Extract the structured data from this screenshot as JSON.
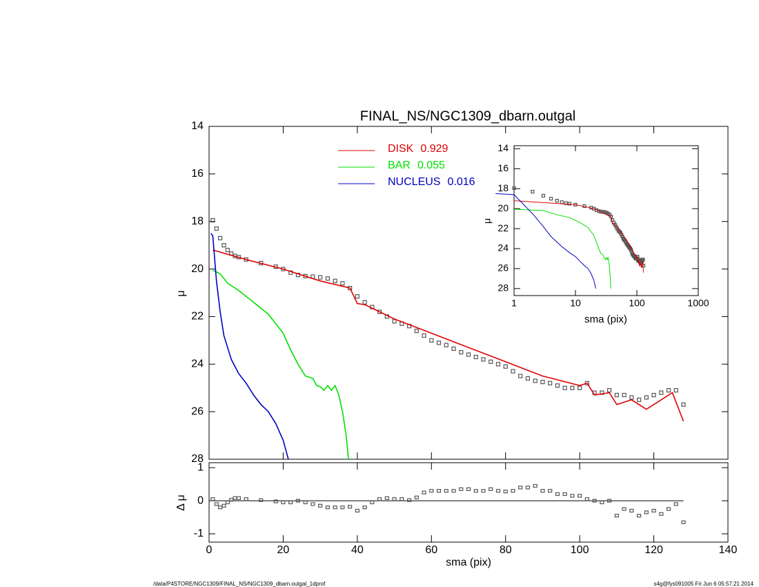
{
  "chart_data": [
    {
      "type": "line",
      "title": "FINAL_NS/NGC1309_dbarn.outgal",
      "ylabel": "μ",
      "xlim": [
        0,
        140
      ],
      "ylim": [
        14,
        28
      ],
      "yticks": [
        14,
        16,
        18,
        20,
        22,
        24,
        26,
        28
      ],
      "series": [
        {
          "marker": "square",
          "color": "#555555",
          "x": [
            1,
            2,
            3,
            4,
            5,
            6,
            7,
            8,
            10,
            14,
            18,
            20,
            22,
            24,
            26,
            28,
            30,
            32,
            34,
            36,
            38,
            40,
            42,
            44,
            46,
            48,
            50,
            52,
            54,
            56,
            58,
            60,
            62,
            64,
            66,
            68,
            70,
            72,
            74,
            76,
            78,
            80,
            82,
            84,
            86,
            88,
            90,
            92,
            94,
            96,
            98,
            100,
            102,
            104,
            106,
            108,
            110,
            112,
            114,
            116,
            118,
            120,
            122,
            124,
            126,
            128
          ],
          "values": [
            17.95,
            18.3,
            18.7,
            19.0,
            19.2,
            19.35,
            19.45,
            19.5,
            19.6,
            19.75,
            19.9,
            20.0,
            20.15,
            20.25,
            20.3,
            20.32,
            20.35,
            20.4,
            20.5,
            20.6,
            20.8,
            21.15,
            21.4,
            21.6,
            21.8,
            22.0,
            22.2,
            22.3,
            22.4,
            22.6,
            22.8,
            23.0,
            23.1,
            23.2,
            23.35,
            23.5,
            23.6,
            23.7,
            23.8,
            23.9,
            24.0,
            24.1,
            24.3,
            24.5,
            24.6,
            24.7,
            24.75,
            24.8,
            24.9,
            25.0,
            25.0,
            25.0,
            24.8,
            25.2,
            25.2,
            25.1,
            25.3,
            25.3,
            25.4,
            25.5,
            25.4,
            25.3,
            25.2,
            25.1,
            25.1,
            25.7
          ]
        },
        {
          "name": "DISK",
          "fraction": 0.929,
          "color": "#e00000",
          "x": [
            1,
            10,
            20,
            30,
            38,
            40,
            42,
            50,
            60,
            70,
            75,
            80,
            85,
            90,
            95,
            100,
            102,
            104,
            108,
            110,
            112,
            114,
            118,
            121,
            125,
            128
          ],
          "values": [
            19.2,
            19.6,
            20.0,
            20.5,
            20.8,
            21.45,
            21.5,
            22.1,
            22.7,
            23.3,
            23.6,
            23.9,
            24.2,
            24.5,
            24.7,
            24.9,
            24.8,
            25.3,
            25.2,
            25.7,
            25.6,
            25.5,
            25.9,
            25.6,
            25.2,
            26.4
          ]
        },
        {
          "name": "BAR",
          "fraction": 0.055,
          "color": "#00e000",
          "x": [
            1,
            3,
            5,
            8,
            12,
            16,
            20,
            22,
            24,
            26,
            28,
            29,
            30,
            31,
            32,
            33,
            34,
            35,
            36,
            37,
            37.6
          ],
          "values": [
            20.05,
            20.2,
            20.6,
            20.9,
            21.4,
            21.9,
            22.7,
            23.4,
            24.0,
            24.5,
            24.6,
            24.9,
            24.95,
            25.1,
            24.9,
            25.1,
            24.9,
            25.3,
            26.0,
            27.0,
            28.0
          ]
        },
        {
          "name": "NUCLEUS",
          "fraction": 0.016,
          "color": "#0000c0",
          "x": [
            0.5,
            1,
            2,
            3,
            4,
            6,
            8,
            10,
            12,
            14,
            16,
            18,
            20,
            21.4
          ],
          "values": [
            18.5,
            18.6,
            20.5,
            21.8,
            22.8,
            23.8,
            24.4,
            24.8,
            25.3,
            25.7,
            26.0,
            26.5,
            27.2,
            28.0
          ]
        }
      ]
    },
    {
      "type": "scatter",
      "ylabel": "Δ μ",
      "xlabel": "sma (pix)",
      "xlim": [
        0,
        140
      ],
      "xticks": [
        0,
        20,
        40,
        60,
        80,
        100,
        120,
        140
      ],
      "ylim": [
        -1.25,
        1.15
      ],
      "yticks": [
        -1,
        0,
        1
      ],
      "series": [
        {
          "color": "#555555",
          "values": [
            0.05,
            -0.1,
            -0.2,
            -0.15,
            -0.05,
            0.03,
            0.08,
            0.08,
            0.05,
            0.02,
            -0.02,
            -0.05,
            -0.05,
            0,
            -0.05,
            -0.1,
            -0.15,
            -0.2,
            -0.2,
            -0.2,
            -0.18,
            -0.3,
            -0.2,
            -0.05,
            0.05,
            0.08,
            0.05,
            0.05,
            0.02,
            0.1,
            0.25,
            0.3,
            0.3,
            0.3,
            0.3,
            0.35,
            0.35,
            0.3,
            0.3,
            0.35,
            0.3,
            0.28,
            0.3,
            0.4,
            0.4,
            0.45,
            0.3,
            0.3,
            0.2,
            0.2,
            0.15,
            0.15,
            0.05,
            0,
            -0.05,
            0,
            -0.45,
            -0.25,
            -0.3,
            -0.45,
            -0.35,
            -0.3,
            -0.4,
            -0.25,
            -0.1,
            -0.65
          ]
        }
      ]
    },
    {
      "type": "inset",
      "xlabel": "sma (pix)",
      "ylabel": "μ",
      "xscale": "log",
      "xlim": [
        1,
        1000
      ],
      "xticks": [
        1,
        10,
        100,
        1000
      ],
      "ylim": [
        13.7,
        28.7
      ],
      "yticks": [
        14,
        16,
        18,
        20,
        22,
        24,
        26,
        28
      ]
    }
  ],
  "footer": {
    "left": "/data/P4STORE/NGC1309/FINAL_NS/NGC1309_dbarn.outgal_1dprof",
    "right": "s4g@fys091005  Fri Jun  6 05:57:21 2014"
  }
}
